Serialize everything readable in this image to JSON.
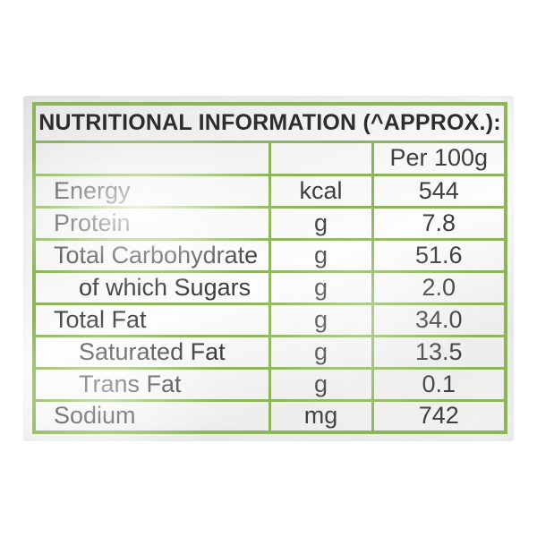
{
  "label": {
    "title": "NUTRITIONAL INFORMATION (^APPROX.):",
    "column_header": "Per 100g",
    "rows": [
      {
        "label": "Energy",
        "unit": "kcal",
        "value": "544",
        "indent": false
      },
      {
        "label": "Protein",
        "unit": "g",
        "value": "7.8",
        "indent": false
      },
      {
        "label": "Total Carbohydrate",
        "unit": "g",
        "value": "51.6",
        "indent": false
      },
      {
        "label": "of which Sugars",
        "unit": "g",
        "value": "2.0",
        "indent": true
      },
      {
        "label": "Total Fat",
        "unit": "g",
        "value": "34.0",
        "indent": false
      },
      {
        "label": "Saturated Fat",
        "unit": "g",
        "value": "13.5",
        "indent": true
      },
      {
        "label": "Trans Fat",
        "unit": "g",
        "value": "0.1",
        "indent": true
      },
      {
        "label": "Sodium",
        "unit": "mg",
        "value": "742",
        "indent": false
      }
    ]
  },
  "colors": {
    "border_green": "#8db45a",
    "text_dark": "#3e3e3e",
    "title_dark": "#2d2d2d"
  }
}
